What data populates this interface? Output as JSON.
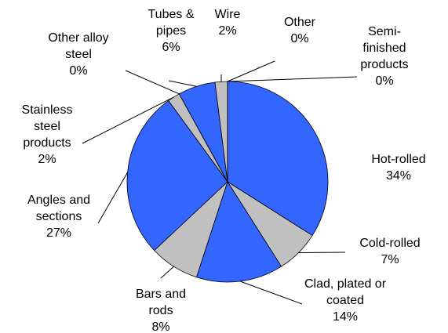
{
  "chart_data": {
    "type": "pie",
    "categories": [
      "Semi-finished products",
      "Hot-rolled",
      "Cold-rolled",
      "Clad, plated or coated",
      "Bars and rods",
      "Angles and sections",
      "Stainless steel products",
      "Other alloy steel",
      "Tubes & pipes",
      "Wire",
      "Other"
    ],
    "values": [
      0,
      34,
      7,
      14,
      8,
      27,
      2,
      0,
      6,
      2,
      0
    ],
    "value_labels": [
      "0%",
      "34%",
      "7%",
      "14%",
      "8%",
      "27%",
      "2%",
      "0%",
      "6%",
      "2%",
      "0%"
    ],
    "colors": [
      "#000000",
      "#3366ff",
      "#c0c0c0",
      "#3366ff",
      "#c0c0c0",
      "#3366ff",
      "#c0c0c0",
      "#000000",
      "#3366ff",
      "#c0c0c0",
      "#000000"
    ]
  }
}
